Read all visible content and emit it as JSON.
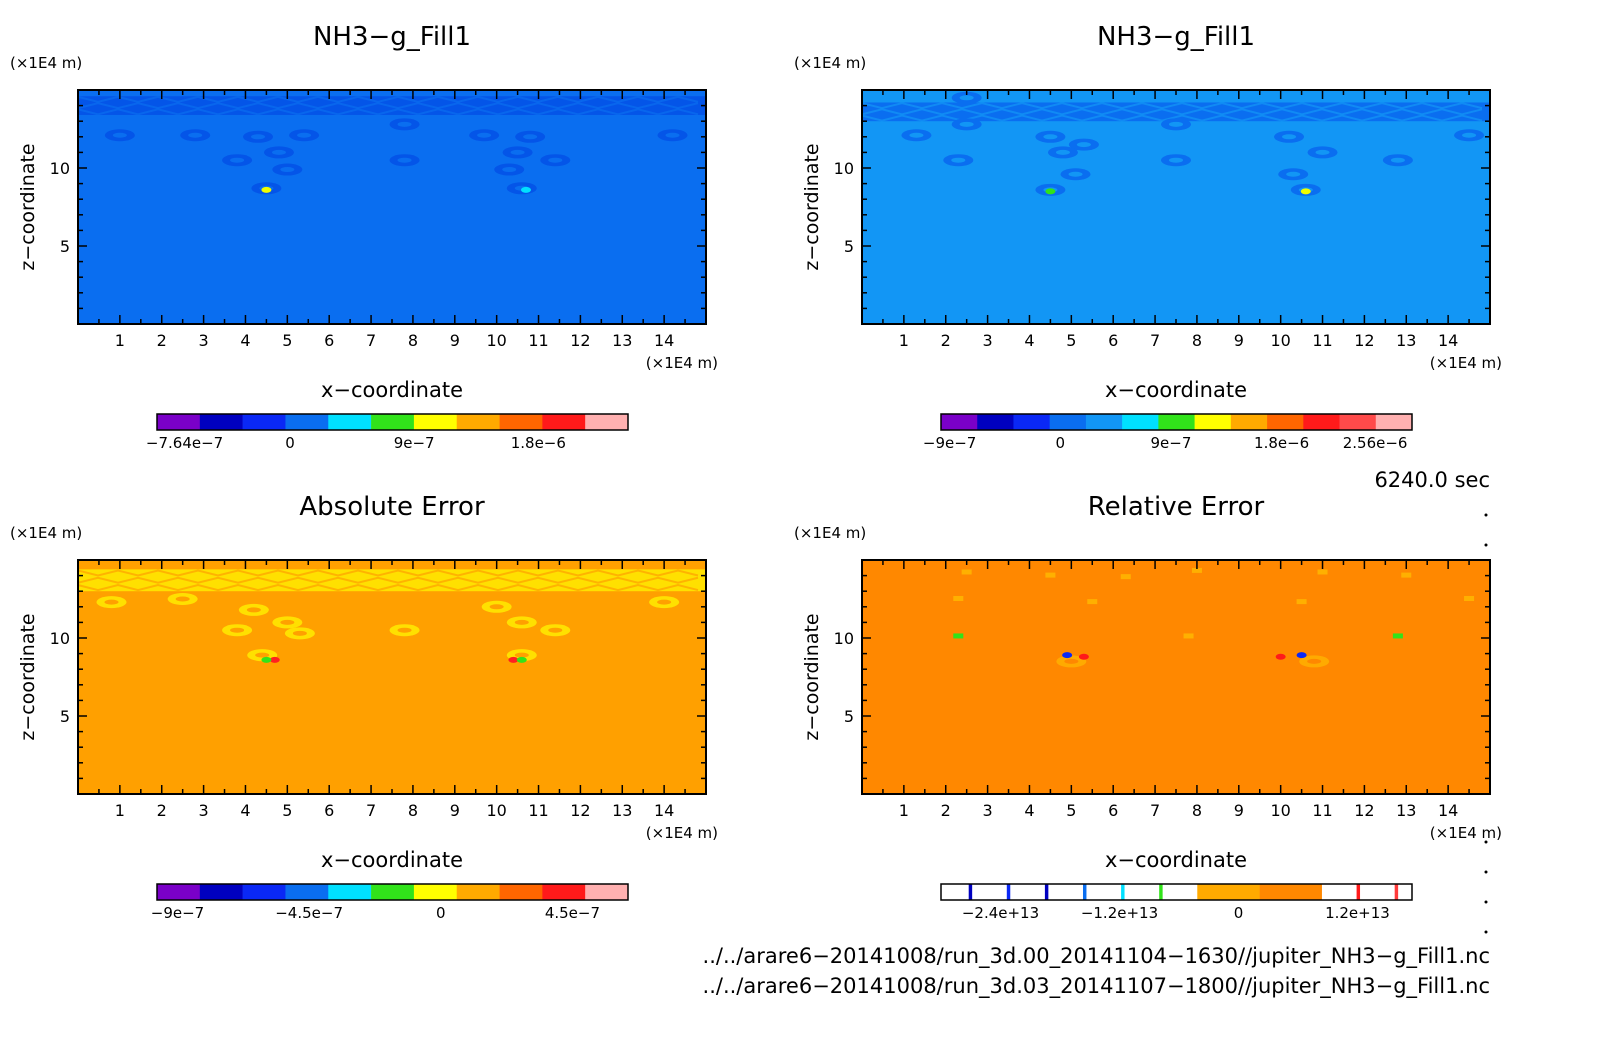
{
  "chart_data": [
    {
      "type": "heatmap",
      "title": "NH3−g_Fill1",
      "xlabel": "x−coordinate",
      "ylabel": "z−coordinate",
      "x_unit": "(×1E4 m)",
      "y_unit": "(×1E4 m)",
      "xticks": [
        "1",
        "2",
        "3",
        "4",
        "5",
        "6",
        "7",
        "8",
        "9",
        "10",
        "11",
        "12",
        "13",
        "14"
      ],
      "yticks": [
        "5",
        "10"
      ],
      "xlim": [
        0,
        15
      ],
      "ylim": [
        0,
        15
      ],
      "background_color": "#0a6ef0",
      "features": [
        {
          "kind": "band",
          "z": [
            13.4,
            14.6
          ],
          "color": "#0455e8"
        },
        {
          "kind": "blob",
          "x": 1.0,
          "z": 12.1,
          "color": "#0455e8"
        },
        {
          "kind": "blob",
          "x": 2.8,
          "z": 12.1,
          "color": "#0455e8"
        },
        {
          "kind": "blob",
          "x": 4.3,
          "z": 12.0,
          "color": "#0455e8"
        },
        {
          "kind": "blob",
          "x": 5.4,
          "z": 12.1,
          "color": "#0455e8"
        },
        {
          "kind": "blob",
          "x": 4.8,
          "z": 11.0,
          "color": "#0455e8"
        },
        {
          "kind": "blob",
          "x": 3.8,
          "z": 10.5,
          "color": "#0455e8"
        },
        {
          "kind": "blob",
          "x": 5.0,
          "z": 9.9,
          "color": "#0455e8"
        },
        {
          "kind": "blob",
          "x": 7.8,
          "z": 10.5,
          "color": "#0455e8"
        },
        {
          "kind": "blob",
          "x": 7.8,
          "z": 12.8,
          "color": "#0455e8"
        },
        {
          "kind": "blob",
          "x": 9.7,
          "z": 12.1,
          "color": "#0455e8"
        },
        {
          "kind": "blob",
          "x": 10.8,
          "z": 12.0,
          "color": "#0455e8"
        },
        {
          "kind": "blob",
          "x": 10.5,
          "z": 11.0,
          "color": "#0455e8"
        },
        {
          "kind": "blob",
          "x": 11.4,
          "z": 10.5,
          "color": "#0455e8"
        },
        {
          "kind": "blob",
          "x": 10.3,
          "z": 9.9,
          "color": "#0455e8"
        },
        {
          "kind": "blob",
          "x": 14.2,
          "z": 12.1,
          "color": "#0455e8"
        },
        {
          "kind": "blob",
          "x": 4.5,
          "z": 8.7,
          "color": "#0455e8"
        },
        {
          "kind": "blob",
          "x": 10.6,
          "z": 8.7,
          "color": "#0455e8"
        },
        {
          "kind": "spot",
          "x": 4.5,
          "z": 8.6,
          "color": "#f0ff00"
        },
        {
          "kind": "spot",
          "x": 10.7,
          "z": 8.6,
          "color": "#00e0ff"
        }
      ],
      "colorbar": {
        "colors": [
          "#7a00c8",
          "#0000c0",
          "#0a28f5",
          "#0a6ef0",
          "#00e0ff",
          "#31e31a",
          "#ffff00",
          "#ffaa00",
          "#ff6600",
          "#ff1a1a",
          "#ffb0b0"
        ],
        "tick_labels": [
          "−7.64e−7",
          "0",
          "9e−7",
          "1.8e−6"
        ],
        "tick_values": [
          -7.64e-07,
          0,
          9e-07,
          1.8e-06
        ],
        "range": [
          -9.64e-07,
          2.45e-06
        ]
      }
    },
    {
      "type": "heatmap",
      "title": "NH3−g_Fill1",
      "xlabel": "x−coordinate",
      "ylabel": "z−coordinate",
      "x_unit": "(×1E4 m)",
      "y_unit": "(×1E4 m)",
      "xticks": [
        "1",
        "2",
        "3",
        "4",
        "5",
        "6",
        "7",
        "8",
        "9",
        "10",
        "11",
        "12",
        "13",
        "14"
      ],
      "yticks": [
        "5",
        "10"
      ],
      "xlim": [
        0,
        15
      ],
      "ylim": [
        0,
        15
      ],
      "background_color": "#1296f5",
      "features": [
        {
          "kind": "band",
          "z": [
            13.0,
            14.2
          ],
          "color": "#0a6ef0"
        },
        {
          "kind": "blob",
          "x": 2.5,
          "z": 14.5,
          "color": "#0a6ef0"
        },
        {
          "kind": "blob",
          "x": 1.3,
          "z": 12.1,
          "color": "#0a6ef0"
        },
        {
          "kind": "blob",
          "x": 2.5,
          "z": 12.8,
          "color": "#0a6ef0"
        },
        {
          "kind": "blob",
          "x": 4.5,
          "z": 12.0,
          "color": "#0a6ef0"
        },
        {
          "kind": "blob",
          "x": 5.3,
          "z": 11.5,
          "color": "#0a6ef0"
        },
        {
          "kind": "blob",
          "x": 4.8,
          "z": 11.0,
          "color": "#0a6ef0"
        },
        {
          "kind": "blob",
          "x": 2.3,
          "z": 10.5,
          "color": "#0a6ef0"
        },
        {
          "kind": "blob",
          "x": 5.1,
          "z": 9.6,
          "color": "#0a6ef0"
        },
        {
          "kind": "blob",
          "x": 7.5,
          "z": 10.5,
          "color": "#0a6ef0"
        },
        {
          "kind": "blob",
          "x": 7.5,
          "z": 12.8,
          "color": "#0a6ef0"
        },
        {
          "kind": "blob",
          "x": 10.2,
          "z": 12.0,
          "color": "#0a6ef0"
        },
        {
          "kind": "blob",
          "x": 11.0,
          "z": 11.0,
          "color": "#0a6ef0"
        },
        {
          "kind": "blob",
          "x": 12.8,
          "z": 10.5,
          "color": "#0a6ef0"
        },
        {
          "kind": "blob",
          "x": 10.3,
          "z": 9.6,
          "color": "#0a6ef0"
        },
        {
          "kind": "blob",
          "x": 14.5,
          "z": 12.1,
          "color": "#0a6ef0"
        },
        {
          "kind": "blob",
          "x": 4.5,
          "z": 8.6,
          "color": "#0a6ef0"
        },
        {
          "kind": "blob",
          "x": 10.6,
          "z": 8.6,
          "color": "#0a6ef0"
        },
        {
          "kind": "spot",
          "x": 4.5,
          "z": 8.5,
          "color": "#31e31a"
        },
        {
          "kind": "spot",
          "x": 10.6,
          "z": 8.5,
          "color": "#f0ff00"
        }
      ],
      "colorbar": {
        "colors": [
          "#7a00c8",
          "#0000c0",
          "#0a28f5",
          "#0a6ef0",
          "#1296f5",
          "#00e0ff",
          "#31e31a",
          "#ffff00",
          "#ffaa00",
          "#ff6600",
          "#ff1a1a",
          "#ff4a4a",
          "#ffb0b0"
        ],
        "tick_labels": [
          "−9e−7",
          "0",
          "9e−7",
          "1.8e−6",
          "2.56e−6"
        ],
        "tick_values": [
          -9e-07,
          0,
          9e-07,
          1.8e-06,
          2.56e-06
        ],
        "range": [
          -9.7e-07,
          2.86e-06
        ]
      }
    },
    {
      "type": "heatmap",
      "title": "Absolute Error",
      "xlabel": "x−coordinate",
      "ylabel": "z−coordinate",
      "x_unit": "(×1E4 m)",
      "y_unit": "(×1E4 m)",
      "xticks": [
        "1",
        "2",
        "3",
        "4",
        "5",
        "6",
        "7",
        "8",
        "9",
        "10",
        "11",
        "12",
        "13",
        "14"
      ],
      "yticks": [
        "5",
        "10"
      ],
      "xlim": [
        0,
        15
      ],
      "ylim": [
        0,
        15
      ],
      "background_color": "#ffa000",
      "features": [
        {
          "kind": "band",
          "z": [
            13.0,
            14.4
          ],
          "color": "#ffe000"
        },
        {
          "kind": "blob",
          "x": 0.8,
          "z": 12.3,
          "color": "#ffe000"
        },
        {
          "kind": "blob",
          "x": 2.5,
          "z": 12.5,
          "color": "#ffe000"
        },
        {
          "kind": "blob",
          "x": 4.2,
          "z": 11.8,
          "color": "#ffe000"
        },
        {
          "kind": "blob",
          "x": 5.0,
          "z": 11.0,
          "color": "#ffe000"
        },
        {
          "kind": "blob",
          "x": 3.8,
          "z": 10.5,
          "color": "#ffe000"
        },
        {
          "kind": "blob",
          "x": 5.3,
          "z": 10.3,
          "color": "#ffe000"
        },
        {
          "kind": "blob",
          "x": 7.8,
          "z": 10.5,
          "color": "#ffe000"
        },
        {
          "kind": "blob",
          "x": 10.0,
          "z": 12.0,
          "color": "#ffe000"
        },
        {
          "kind": "blob",
          "x": 10.6,
          "z": 11.0,
          "color": "#ffe000"
        },
        {
          "kind": "blob",
          "x": 11.4,
          "z": 10.5,
          "color": "#ffe000"
        },
        {
          "kind": "blob",
          "x": 14.0,
          "z": 12.3,
          "color": "#ffe000"
        },
        {
          "kind": "blob",
          "x": 4.4,
          "z": 8.9,
          "color": "#ffe000"
        },
        {
          "kind": "blob",
          "x": 10.6,
          "z": 8.9,
          "color": "#ffe000"
        },
        {
          "kind": "spot",
          "x": 4.7,
          "z": 8.6,
          "color": "#ff2020"
        },
        {
          "kind": "spot",
          "x": 4.5,
          "z": 8.6,
          "color": "#31e31a"
        },
        {
          "kind": "spot",
          "x": 10.4,
          "z": 8.6,
          "color": "#ff2020"
        },
        {
          "kind": "spot",
          "x": 10.6,
          "z": 8.6,
          "color": "#31e31a"
        }
      ],
      "colorbar": {
        "colors": [
          "#7a00c8",
          "#0000c0",
          "#0a28f5",
          "#0a6ef0",
          "#00e0ff",
          "#31e31a",
          "#ffff00",
          "#ffaa00",
          "#ff6600",
          "#ff1a1a",
          "#ffb0b0"
        ],
        "tick_labels": [
          "−9e−7",
          "−4.5e−7",
          "0",
          "4.5e−7"
        ],
        "tick_values": [
          -9e-07,
          -4.5e-07,
          0,
          4.5e-07
        ],
        "range": [
          -9.7e-07,
          6.4e-07
        ]
      }
    },
    {
      "type": "heatmap",
      "title": "Relative Error",
      "xlabel": "x−coordinate",
      "ylabel": "z−coordinate",
      "x_unit": "(×1E4 m)",
      "y_unit": "(×1E4 m)",
      "xticks": [
        "1",
        "2",
        "3",
        "4",
        "5",
        "6",
        "7",
        "8",
        "9",
        "10",
        "11",
        "12",
        "13",
        "14"
      ],
      "yticks": [
        "5",
        "10"
      ],
      "xlim": [
        0,
        15
      ],
      "ylim": [
        0,
        15
      ],
      "background_color": "#ff8800",
      "features": [
        {
          "kind": "spec",
          "x": 2.5,
          "z": 14.2,
          "color": "#ffb000"
        },
        {
          "kind": "spec",
          "x": 4.5,
          "z": 14.0,
          "color": "#ffb000"
        },
        {
          "kind": "spec",
          "x": 6.3,
          "z": 13.9,
          "color": "#ffb000"
        },
        {
          "kind": "spec",
          "x": 8.0,
          "z": 14.3,
          "color": "#ffb000"
        },
        {
          "kind": "spec",
          "x": 11.0,
          "z": 14.2,
          "color": "#ffb000"
        },
        {
          "kind": "spec",
          "x": 13.0,
          "z": 14.0,
          "color": "#ffb000"
        },
        {
          "kind": "spec",
          "x": 2.3,
          "z": 12.5,
          "color": "#ffb000"
        },
        {
          "kind": "spec",
          "x": 5.5,
          "z": 12.3,
          "color": "#ffb000"
        },
        {
          "kind": "spec",
          "x": 10.5,
          "z": 12.3,
          "color": "#ffb000"
        },
        {
          "kind": "spec",
          "x": 14.5,
          "z": 12.5,
          "color": "#ffb000"
        },
        {
          "kind": "spec",
          "x": 7.8,
          "z": 10.1,
          "color": "#ffb000"
        },
        {
          "kind": "spec",
          "x": 2.3,
          "z": 10.1,
          "color": "#31e31a"
        },
        {
          "kind": "spec",
          "x": 12.8,
          "z": 10.1,
          "color": "#31e31a"
        },
        {
          "kind": "blob",
          "x": 5.0,
          "z": 8.5,
          "color": "#ffaa00"
        },
        {
          "kind": "blob",
          "x": 10.8,
          "z": 8.5,
          "color": "#ffaa00"
        },
        {
          "kind": "spot",
          "x": 4.9,
          "z": 8.9,
          "color": "#0a28f5"
        },
        {
          "kind": "spot",
          "x": 10.5,
          "z": 8.9,
          "color": "#0a28f5"
        },
        {
          "kind": "spot",
          "x": 5.3,
          "z": 8.8,
          "color": "#ff1a1a"
        },
        {
          "kind": "spot",
          "x": 10.0,
          "z": 8.8,
          "color": "#ff1a1a"
        }
      ],
      "colorbar": {
        "colors": [
          "#ffffff",
          "#0000c0",
          "#ffffff",
          "#0a28f5",
          "#ffffff",
          "#0000c0",
          "#ffffff",
          "#0a6ef0",
          "#ffffff",
          "#00e0ff",
          "#ffffff",
          "#31e31a",
          "#ffffff",
          "#ffaa00",
          "#ff8800",
          "#ffffff",
          "#ff1a1a",
          "#ffffff",
          "#ff3a3a",
          "#ffffff"
        ],
        "color_weights": [
          8,
          1,
          10,
          1,
          10,
          1,
          10,
          1,
          10,
          1,
          10,
          1,
          10,
          18,
          18,
          10,
          1,
          10,
          1,
          4
        ],
        "tick_labels": [
          "−2.4e+13",
          "−1.2e+13",
          "0",
          "1.2e+13"
        ],
        "tick_values": [
          -24000000000000.0,
          -12000000000000.0,
          0,
          12000000000000.0
        ],
        "range": [
          -30000000000000.0,
          17500000000000.0
        ]
      }
    }
  ],
  "time_label": "6240.0 sec",
  "file_lines": [
    "../../arare6−20141008/run_3d.00_20141104−1630//jupiter_NH3−g_Fill1.nc",
    "../../arare6−20141008/run_3d.03_20141107−1800//jupiter_NH3−g_Fill1.nc"
  ]
}
